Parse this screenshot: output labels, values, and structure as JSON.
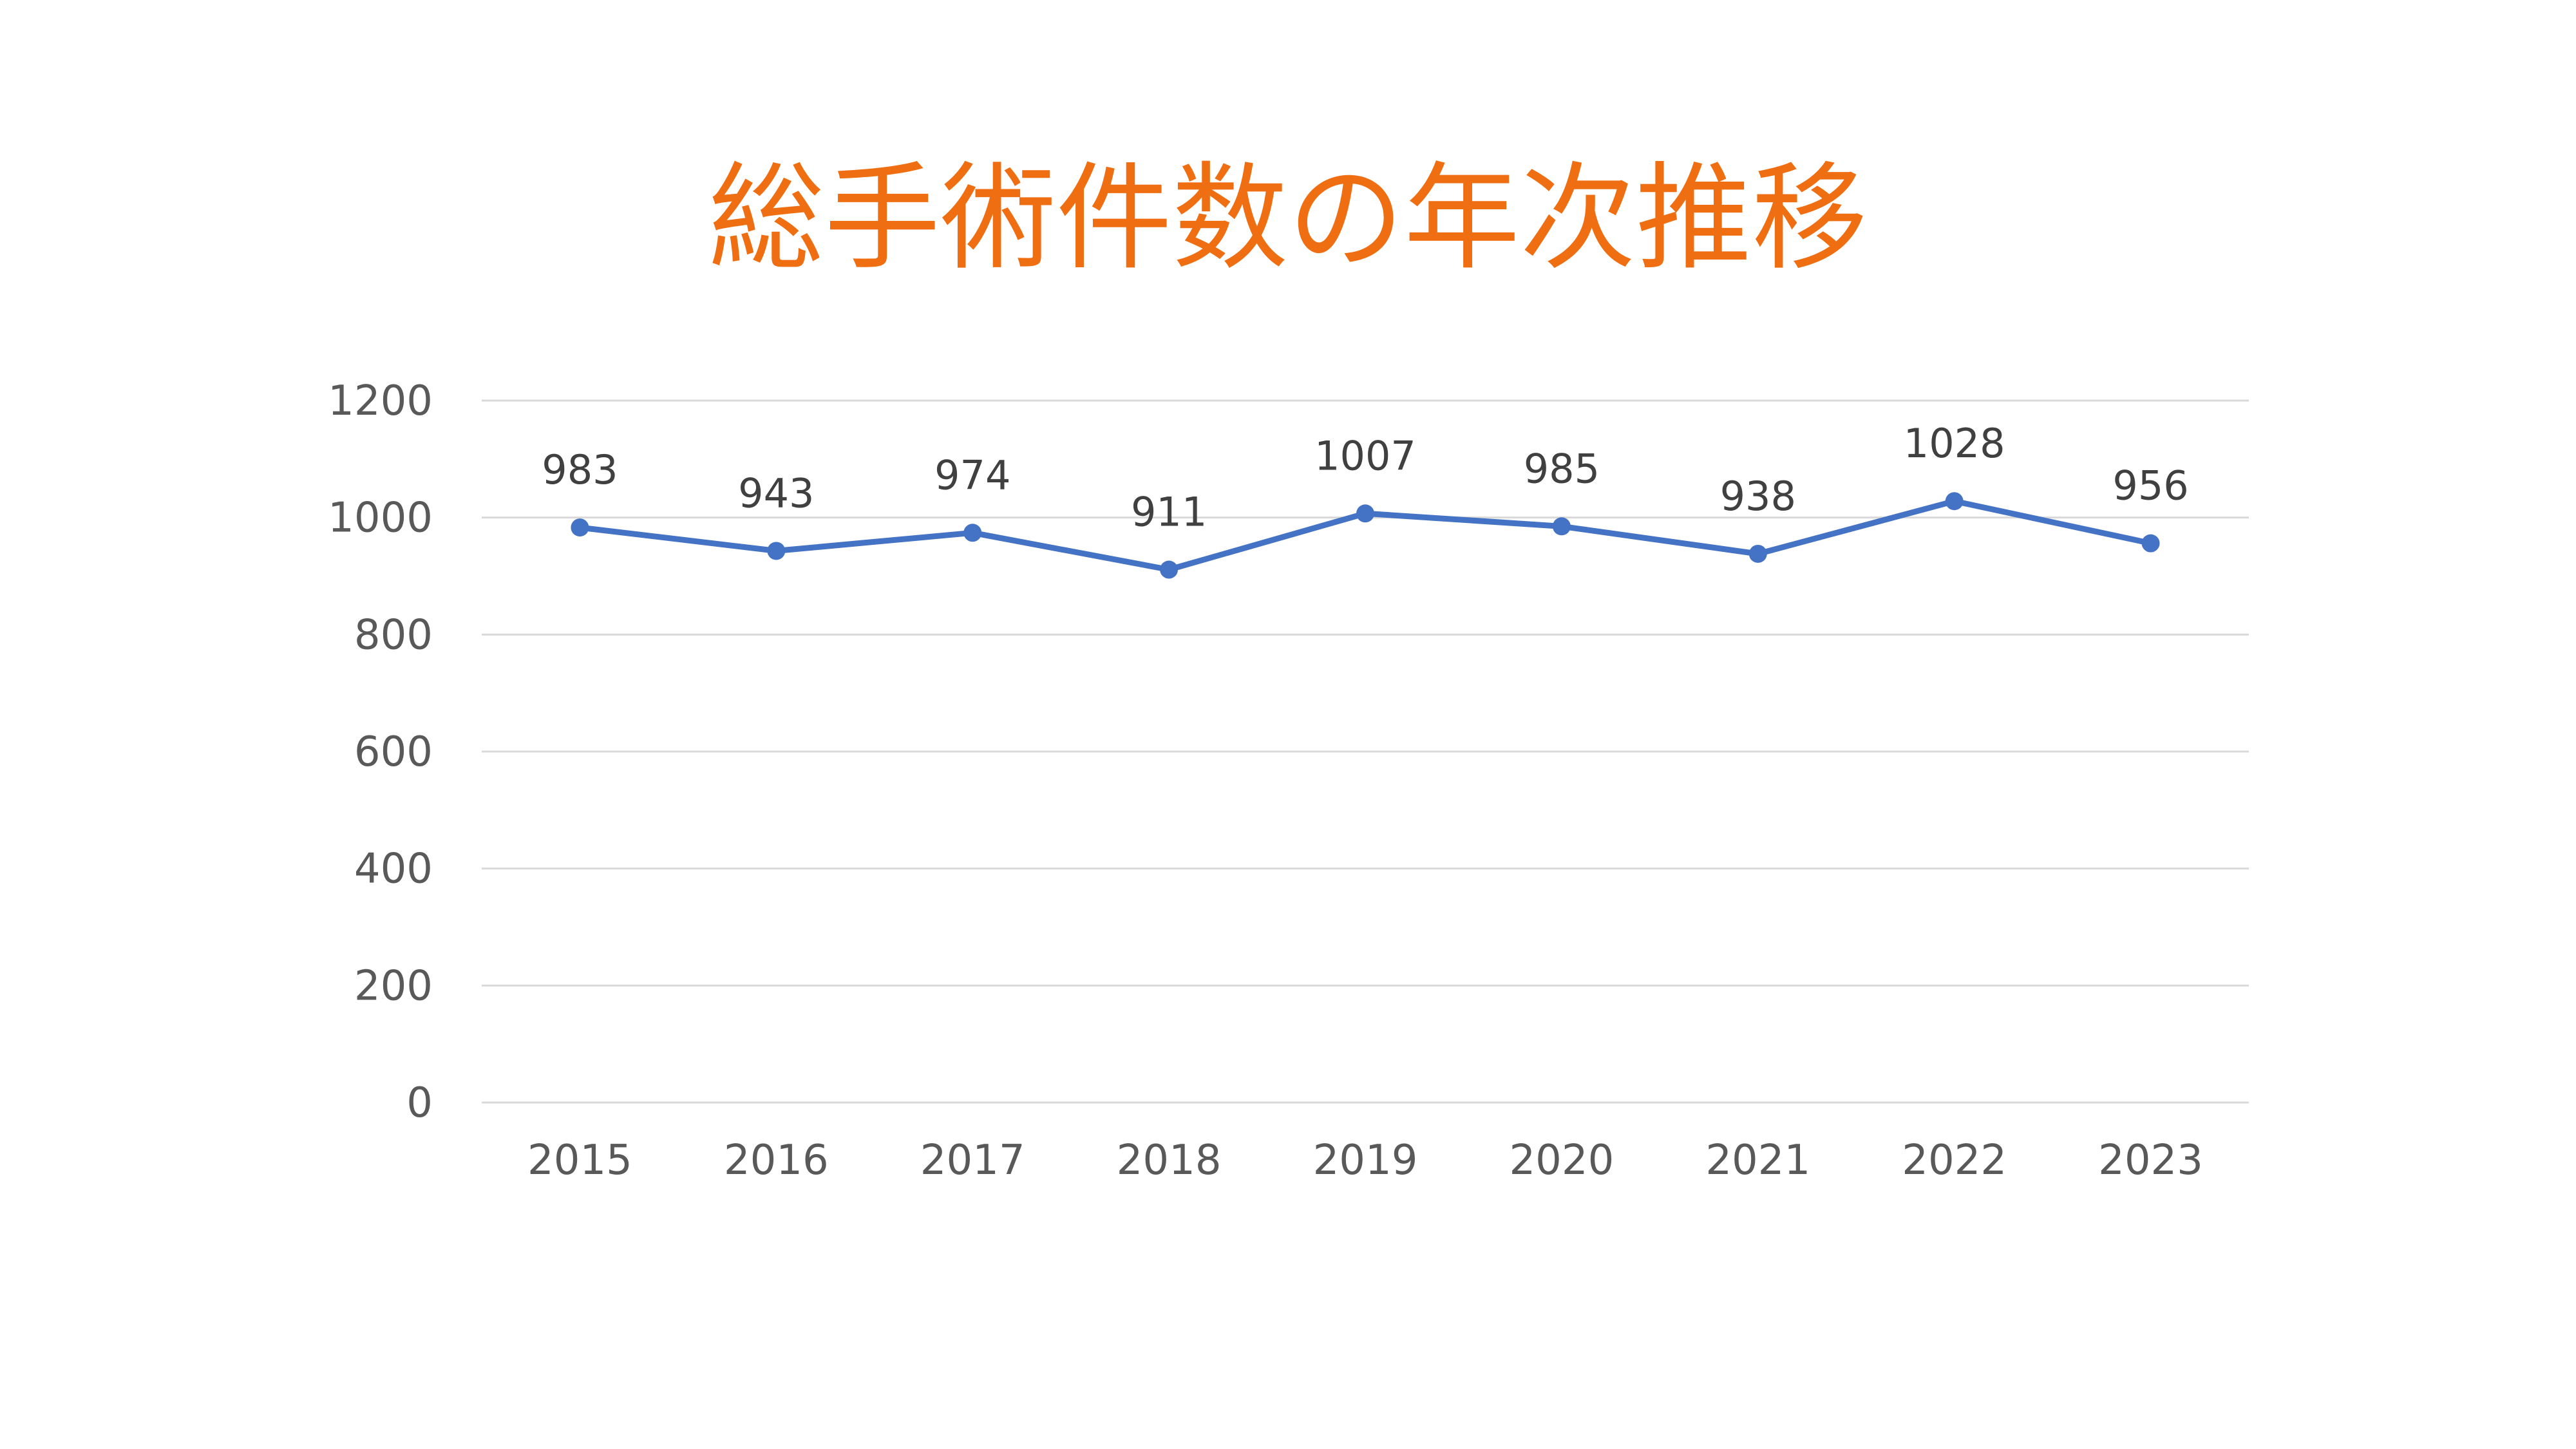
{
  "colors": {
    "title": "#F06E12",
    "series": "#4472C4",
    "grid": "#D9D9D9",
    "tick_text": "#595959",
    "label_text": "#404040"
  },
  "chart_data": {
    "type": "line",
    "title": "総手術件数の年次推移",
    "xlabel": "",
    "ylabel": "",
    "categories": [
      "2015",
      "2016",
      "2017",
      "2018",
      "2019",
      "2020",
      "2021",
      "2022",
      "2023"
    ],
    "series": [
      {
        "values": [
          983,
          943,
          974,
          911,
          1007,
          985,
          938,
          1028,
          956
        ],
        "marker": "circle",
        "data_labels": true
      }
    ],
    "ylim": [
      0,
      1200
    ],
    "yticks": [
      0,
      200,
      400,
      600,
      800,
      1000,
      1200
    ],
    "grid": true,
    "legend": "none"
  }
}
